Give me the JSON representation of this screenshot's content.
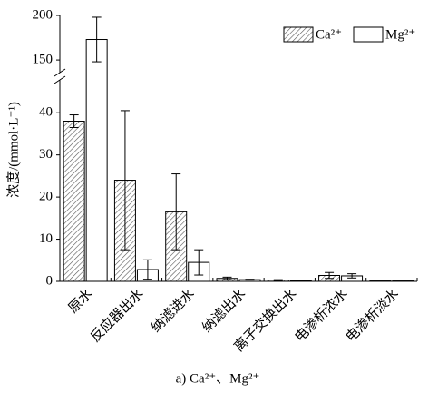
{
  "chart_data": {
    "type": "bar",
    "title": "a) Ca²⁺、Mg²⁺",
    "ylabel": "浓度/(mmol·L⁻¹)",
    "categories": [
      "原水",
      "反应器出水",
      "纳滤进水",
      "纳滤出水",
      "离子交换出水",
      "电渗析浓水",
      "电渗析淡水"
    ],
    "series": [
      {
        "name": "Ca²⁺",
        "color": "#ffffff",
        "hatch": true,
        "values": [
          38,
          24,
          16.5,
          0.7,
          0.3,
          1.4,
          0.1
        ],
        "errors": [
          1.5,
          16.5,
          9,
          0.3,
          0.1,
          0.7,
          0
        ]
      },
      {
        "name": "Mg²⁺",
        "color": "#ffffff",
        "hatch": false,
        "values": [
          173,
          2.8,
          4.5,
          0.4,
          0.2,
          1.3,
          0.1
        ],
        "errors": [
          25,
          2.3,
          3,
          0.1,
          0.1,
          0.5,
          0
        ]
      }
    ],
    "ylim": [
      0,
      200
    ],
    "y_break": [
      45,
      145
    ],
    "yticks": [
      0,
      10,
      20,
      30,
      40,
      150,
      200
    ],
    "legend": "upper right"
  }
}
